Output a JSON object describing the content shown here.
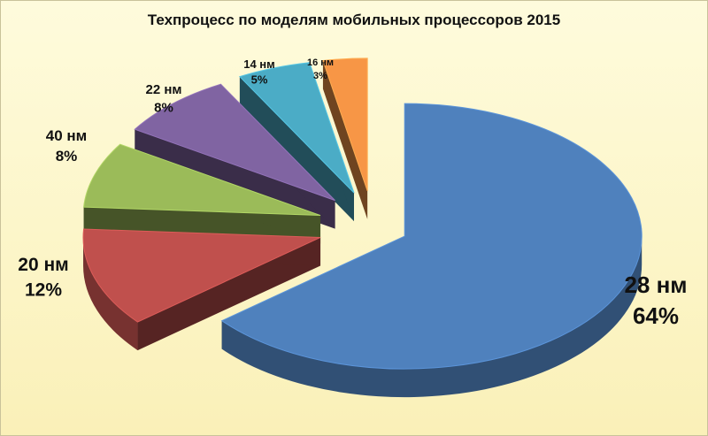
{
  "chart_data": {
    "type": "pie",
    "title": "Техпроцесс по моделям мобильных процессоров 2015",
    "categories": [
      "28 нм",
      "20 нм",
      "40 нм",
      "22 нм",
      "14 нм",
      "16 нм"
    ],
    "values": [
      64,
      12,
      8,
      8,
      5,
      3
    ],
    "value_labels": [
      "64%",
      "12%",
      "8%",
      "8%",
      "5%",
      "3%"
    ],
    "colors": [
      "#4f81bd",
      "#c0504d",
      "#9bbb59",
      "#8064a2",
      "#4bacc6",
      "#f79646"
    ],
    "exploded": true,
    "three_d": true,
    "legend": "none"
  }
}
